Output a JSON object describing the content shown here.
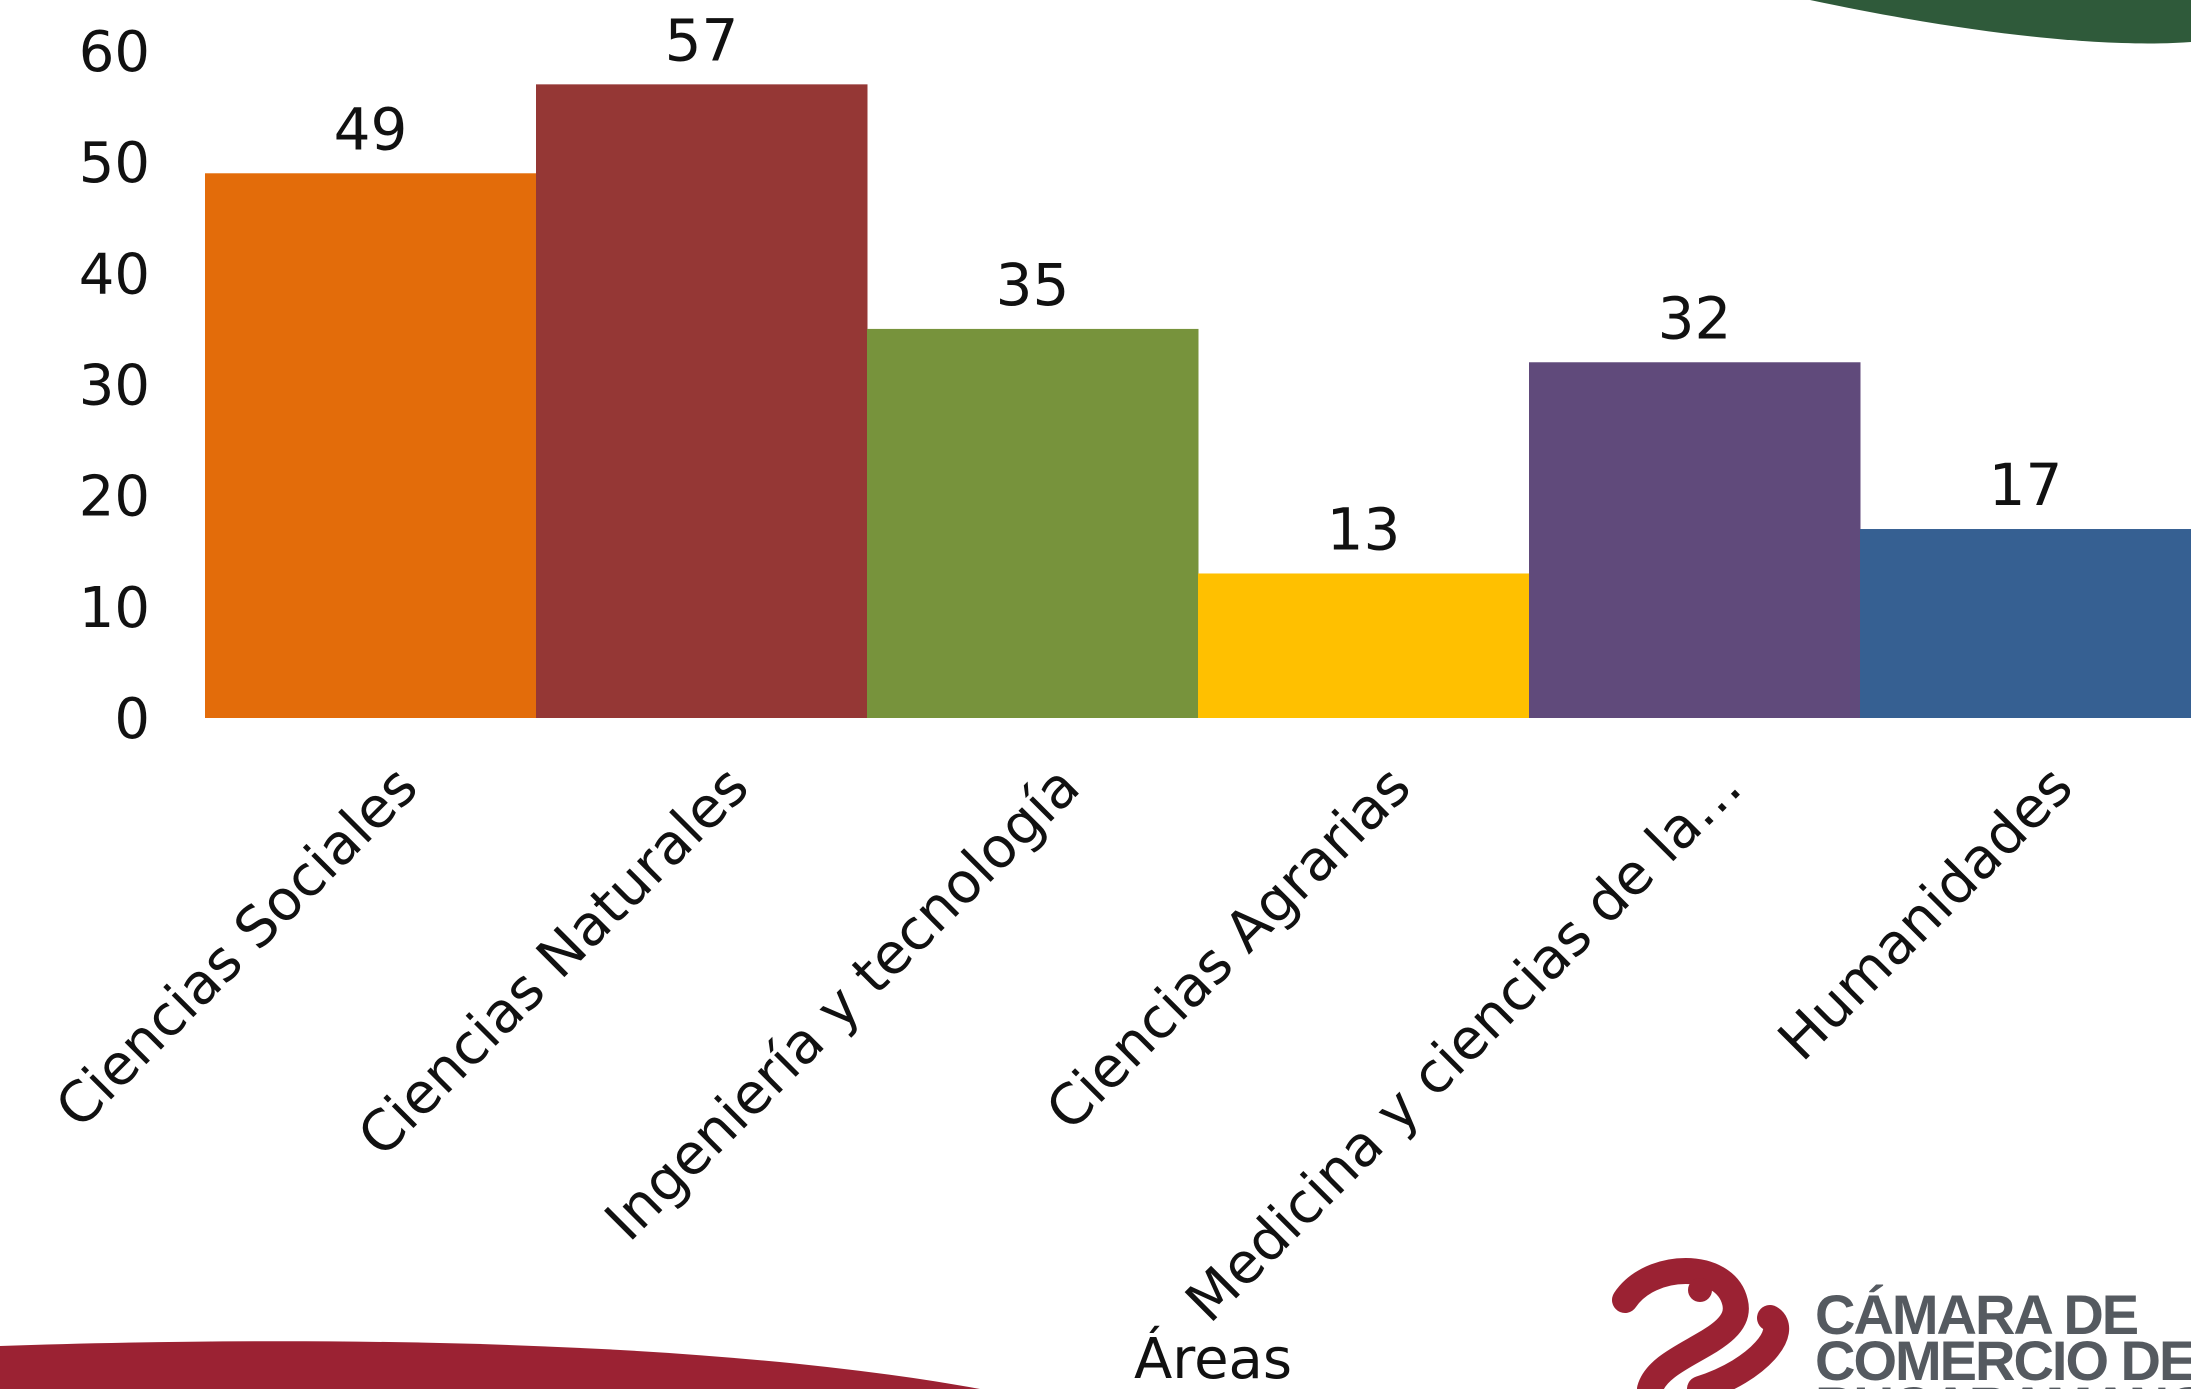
{
  "chart_data": {
    "type": "bar",
    "categories": [
      "Ciencias Sociales",
      "Ciencias Naturales",
      "Ingeniería y tecnología",
      "Ciencias Agrarias",
      "Medicina y ciencias de la…",
      "Humanidades"
    ],
    "values": [
      49,
      57,
      35,
      13,
      32,
      17
    ],
    "colors": [
      "#E36C0A",
      "#953735",
      "#77933C",
      "#FFC000",
      "#604A7B",
      "#366092"
    ],
    "xlabel": "Áreas",
    "ylabel": "",
    "ylim": [
      0,
      60
    ],
    "yticks": [
      0,
      10,
      20,
      30,
      40,
      50,
      60
    ],
    "data_labels": [
      "49",
      "57",
      "35",
      "13",
      "32",
      "17"
    ],
    "grid": false,
    "legend": "none"
  },
  "logo": {
    "text_lines": [
      "CÁMARA DE",
      "COMERCIO DE",
      "BUCARAMANGA"
    ],
    "brand_color": "#9b2233"
  },
  "decor": {
    "bottom_band_color": "#9b2233",
    "top_photo_color": "#2f5a3a"
  }
}
